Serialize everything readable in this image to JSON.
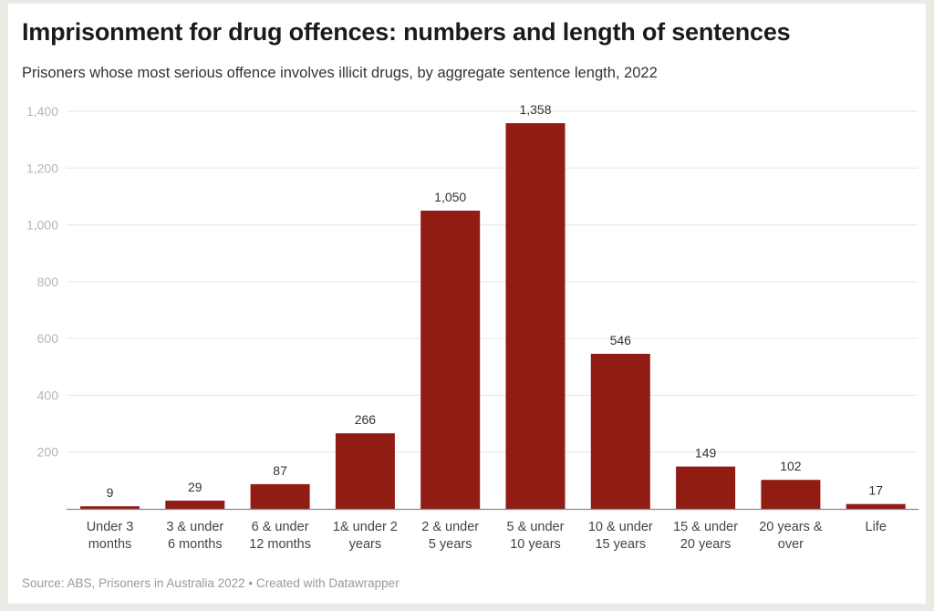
{
  "title": "Imprisonment for drug offences: numbers and length of sentences",
  "subtitle": "Prisoners whose most serious offence involves illicit drugs, by aggregate sentence length, 2022",
  "source": "Source: ABS, Prisoners in Australia 2022 • Created with Datawrapper",
  "colors": {
    "bar": "#901c14",
    "grid": "#e6e6e6",
    "axis": "#8a8a8a",
    "background": "#e9ebe5"
  },
  "chart_data": {
    "type": "bar",
    "title": "Imprisonment for drug offences: numbers and length of sentences",
    "subtitle": "Prisoners whose most serious offence involves illicit drugs, by aggregate sentence length, 2022",
    "xlabel": "",
    "ylabel": "",
    "ylim": [
      0,
      1400
    ],
    "yticks": [
      200,
      400,
      600,
      800,
      1000,
      1200,
      1400
    ],
    "ytick_labels": [
      "200",
      "400",
      "600",
      "800",
      "1,000",
      "1,200",
      "1,400"
    ],
    "grid": true,
    "legend": "none",
    "categories": [
      [
        "Under 3",
        "months"
      ],
      [
        "3 & under",
        "6 months"
      ],
      [
        "6 & under",
        "12 months"
      ],
      [
        "1& under 2",
        "years"
      ],
      [
        "2 & under",
        "5 years"
      ],
      [
        "5 & under",
        "10 years"
      ],
      [
        "10 & under",
        "15 years"
      ],
      [
        "15 & under",
        "20 years"
      ],
      [
        "20 years &",
        "over"
      ],
      [
        "Life"
      ]
    ],
    "values": [
      9,
      29,
      87,
      266,
      1050,
      1358,
      546,
      149,
      102,
      17
    ],
    "value_labels": [
      "9",
      "29",
      "87",
      "266",
      "1,050",
      "1,358",
      "546",
      "149",
      "102",
      "17"
    ]
  }
}
